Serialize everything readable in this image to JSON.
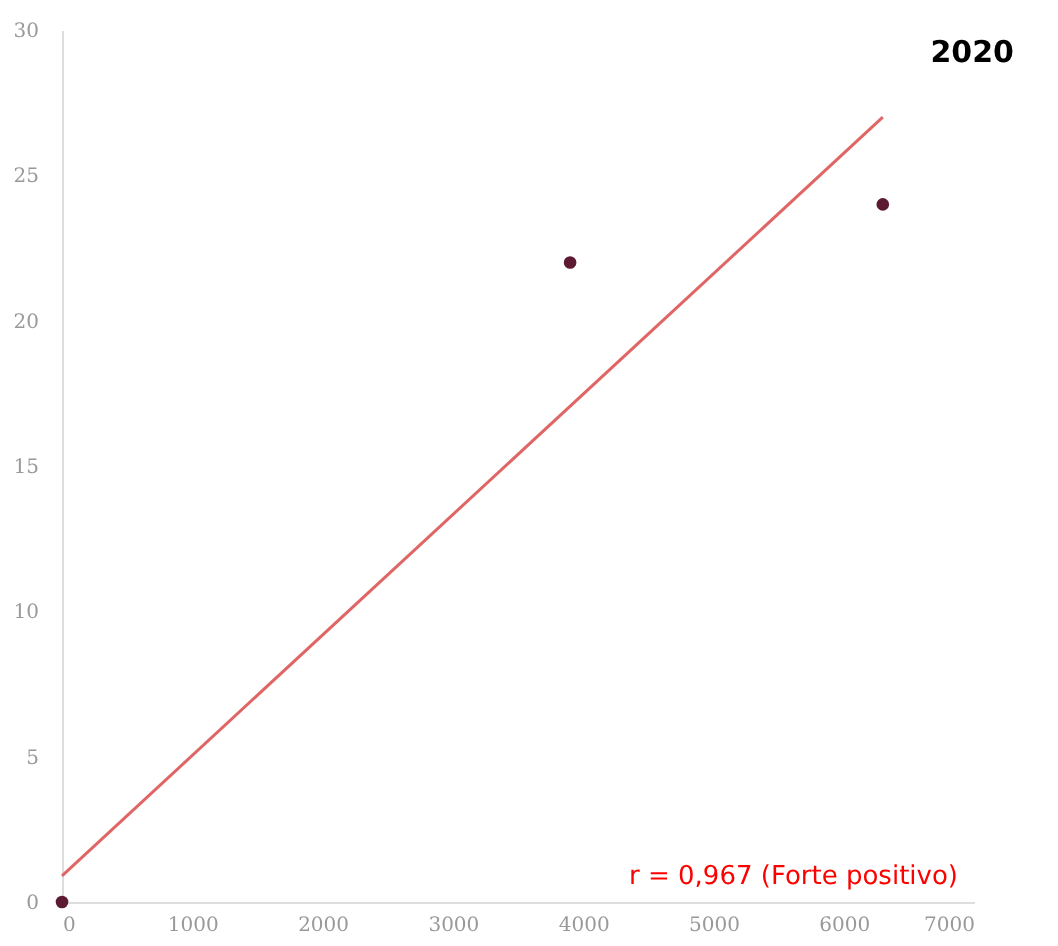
{
  "chart_data": {
    "type": "scatter",
    "title": "2020",
    "series": [
      {
        "color": "#5c1a33",
        "marker": "circle",
        "x": [
          0,
          3900,
          6300
        ],
        "values": [
          0,
          22,
          24
        ]
      },
      {
        "type": "line",
        "color": "#e06666",
        "x": [
          0,
          6300
        ],
        "values": [
          0.9,
          27
        ]
      }
    ],
    "xlim": [
      0,
      7000
    ],
    "xticks": [
      0,
      1000,
      2000,
      3000,
      4000,
      5000,
      6000,
      7000
    ],
    "ylim": [
      0,
      30
    ],
    "yticks": [
      0,
      5,
      10,
      15,
      20,
      25,
      30
    ],
    "annotations": [
      "r = 0,967 (Forte positivo)"
    ]
  }
}
